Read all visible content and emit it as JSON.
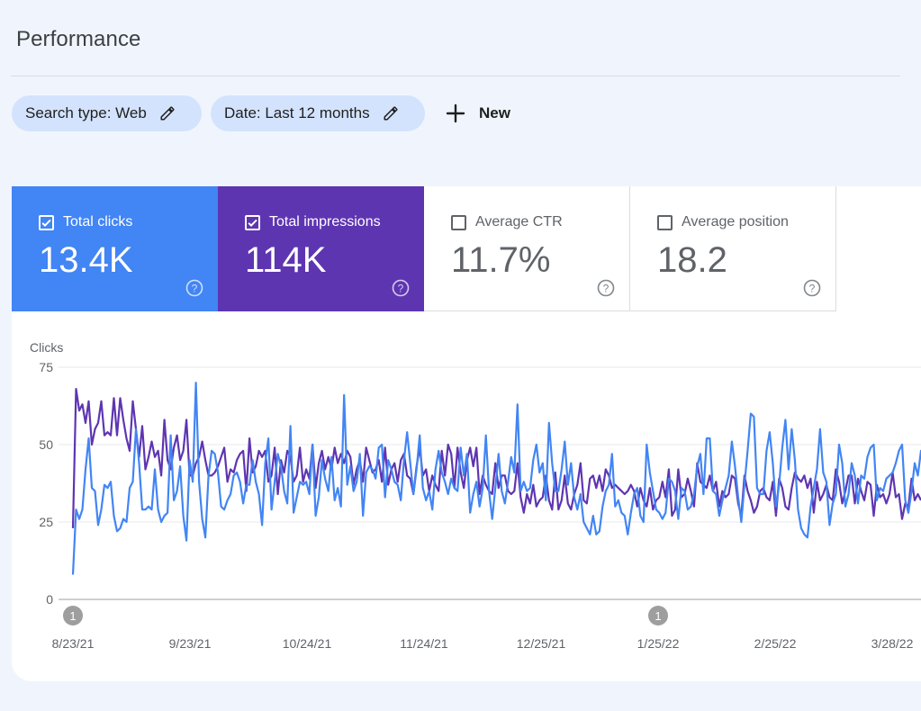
{
  "page": {
    "title": "Performance"
  },
  "filters": {
    "search_type": "Search type: Web",
    "date": "Date: Last 12 months",
    "new_label": "New"
  },
  "metrics": [
    {
      "label": "Total clicks",
      "value": "13.4K",
      "checked": true,
      "color": "#4285f4"
    },
    {
      "label": "Total impressions",
      "value": "114K",
      "checked": true,
      "color": "#5e35b1"
    },
    {
      "label": "Average CTR",
      "value": "11.7%",
      "checked": false
    },
    {
      "label": "Average position",
      "value": "18.2",
      "checked": false
    }
  ],
  "chart_data": {
    "type": "line",
    "ylabel": "Clicks",
    "yticks": [
      "75",
      "50",
      "25",
      "0"
    ],
    "ylim": [
      0,
      75
    ],
    "xticks": [
      "8/23/21",
      "9/23/21",
      "10/24/21",
      "11/24/21",
      "12/25/21",
      "1/25/22",
      "2/25/22",
      "3/28/22"
    ],
    "annotations": [
      {
        "label": "1",
        "x": "8/23/21"
      },
      {
        "label": "1",
        "x": "1/25/22"
      }
    ],
    "grid": true,
    "series": [
      {
        "color": "#5e35b1",
        "values": [
          23,
          68,
          61,
          63,
          57,
          64,
          50,
          55,
          57,
          64,
          53,
          54,
          53,
          65,
          53,
          65,
          58,
          52,
          48,
          64,
          55,
          46,
          56,
          42,
          46,
          51,
          46,
          48,
          40,
          58,
          45,
          42,
          49,
          53,
          45,
          48,
          58,
          40,
          40,
          44,
          46,
          51,
          45,
          40,
          40,
          41,
          43,
          46,
          49,
          38,
          42,
          41,
          45,
          47,
          48,
          35,
          52,
          41,
          43,
          48,
          46,
          48,
          38,
          40,
          49,
          34,
          45,
          41,
          48,
          46,
          38,
          40,
          49,
          38,
          42,
          39,
          50,
          36,
          44,
          48,
          42,
          46,
          42,
          49,
          44,
          47,
          44,
          48,
          46,
          37,
          42,
          45,
          38,
          49,
          45,
          41,
          42,
          45,
          38,
          49,
          37,
          42,
          44,
          38,
          45,
          47,
          40,
          39,
          34,
          43,
          49,
          40,
          42,
          35,
          40,
          37,
          35,
          48,
          40,
          50,
          47,
          36,
          49,
          41,
          36,
          45,
          49,
          43,
          49,
          34,
          40,
          37,
          35,
          34,
          44,
          36,
          40,
          40,
          35,
          34,
          35,
          44,
          33,
          28,
          34,
          31,
          37,
          30,
          32,
          33,
          40,
          32,
          29,
          41,
          29,
          32,
          40,
          31,
          29,
          34,
          37,
          44,
          32,
          31,
          39,
          40,
          36,
          40,
          35,
          42,
          40,
          36,
          37,
          36,
          35,
          34,
          35,
          37,
          35,
          30,
          36,
          32,
          30,
          36,
          29,
          32,
          33,
          38,
          33,
          42,
          27,
          29,
          42,
          33,
          34,
          39,
          35,
          30,
          44,
          38,
          37,
          36,
          40,
          35,
          38,
          30,
          35,
          33,
          34,
          40,
          39,
          31,
          27,
          40,
          35,
          32,
          28,
          30,
          35,
          36,
          33,
          32,
          38,
          27,
          39,
          36,
          30,
          29,
          36,
          41,
          39,
          38,
          40,
          36,
          39,
          28,
          38,
          32,
          34,
          37,
          33,
          32,
          42,
          38,
          31,
          35,
          40,
          40,
          31,
          39,
          35,
          32,
          38,
          37,
          27,
          37,
          33,
          34,
          31,
          34,
          41,
          33,
          34,
          26,
          31,
          30,
          39,
          32,
          34,
          32
        ]
      },
      {
        "color": "#4285f4",
        "values": [
          8,
          29,
          26,
          29,
          42,
          52,
          36,
          35,
          24,
          29,
          37,
          36,
          38,
          27,
          22,
          23,
          26,
          25,
          36,
          38,
          55,
          44,
          29,
          29,
          30,
          29,
          42,
          29,
          25,
          27,
          28,
          53,
          32,
          35,
          43,
          27,
          19,
          45,
          38,
          70,
          38,
          26,
          20,
          40,
          48,
          47,
          41,
          30,
          29,
          32,
          34,
          40,
          41,
          38,
          31,
          37,
          37,
          45,
          38,
          34,
          24,
          44,
          52,
          29,
          38,
          47,
          43,
          35,
          31,
          56,
          28,
          33,
          38,
          37,
          38,
          34,
          50,
          27,
          33,
          45,
          39,
          35,
          46,
          32,
          36,
          30,
          66,
          37,
          43,
          35,
          38,
          47,
          27,
          41,
          43,
          42,
          39,
          49,
          50,
          33,
          45,
          42,
          38,
          37,
          32,
          45,
          54,
          44,
          34,
          42,
          53,
          36,
          32,
          35,
          29,
          42,
          48,
          41,
          38,
          34,
          39,
          36,
          35,
          49,
          40,
          47,
          28,
          34,
          38,
          30,
          36,
          53,
          35,
          26,
          36,
          47,
          35,
          31,
          38,
          46,
          41,
          63,
          35,
          38,
          35,
          36,
          45,
          50,
          41,
          44,
          32,
          57,
          44,
          35,
          35,
          42,
          51,
          37,
          44,
          33,
          29,
          34,
          25,
          23,
          21,
          27,
          21,
          22,
          30,
          35,
          37,
          47,
          30,
          32,
          28,
          27,
          21,
          28,
          34,
          36,
          27,
          25,
          50,
          41,
          35,
          29,
          28,
          26,
          28,
          39,
          38,
          35,
          26,
          36,
          35,
          29,
          30,
          34,
          43,
          47,
          34,
          52,
          52,
          35,
          34,
          27,
          32,
          36,
          40,
          51,
          43,
          33,
          25,
          37,
          48,
          60,
          59,
          36,
          34,
          34,
          48,
          54,
          44,
          30,
          37,
          49,
          58,
          42,
          55,
          45,
          29,
          23,
          21,
          20,
          30,
          36,
          42,
          55,
          41,
          38,
          24,
          31,
          34,
          50,
          44,
          30,
          34,
          44,
          40,
          31,
          40,
          39,
          46,
          49,
          50,
          32,
          36,
          35,
          39,
          40,
          41,
          44,
          48,
          50,
          32,
          28,
          35,
          44,
          40,
          48,
          43
        ]
      }
    ]
  },
  "icons": {
    "checkbox": "check-icon",
    "help": "help-circle-icon",
    "edit": "pencil-icon",
    "add": "plus-icon"
  }
}
